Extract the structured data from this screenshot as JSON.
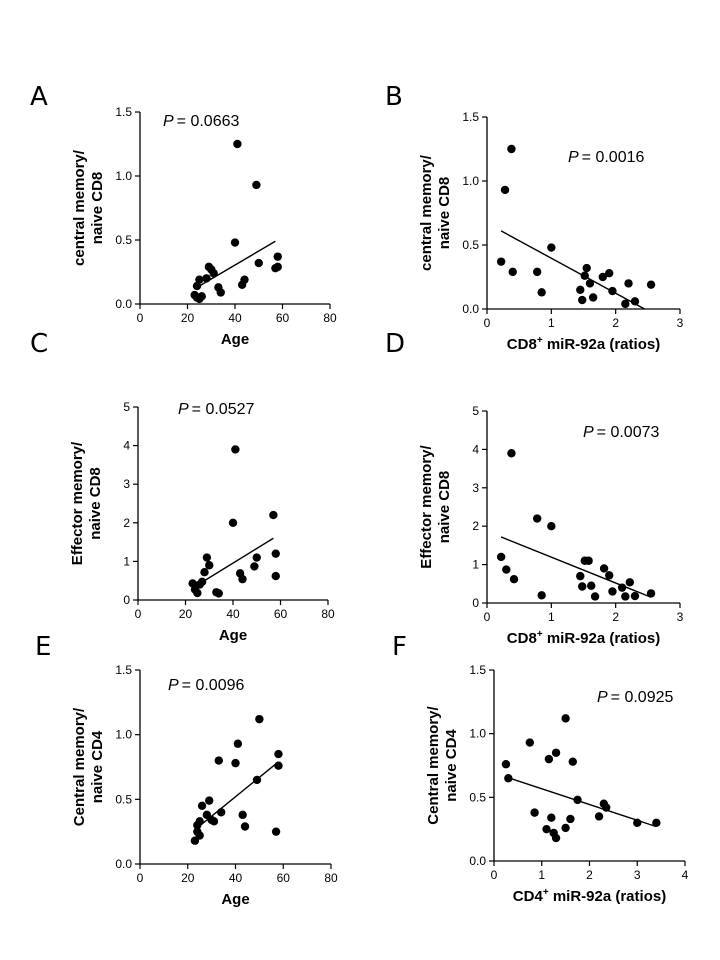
{
  "chart_data": [
    {
      "panel": "A",
      "type": "scatter",
      "p_value": "= 0.0663",
      "p_symbol": "P",
      "xlabel": "Age",
      "xlabel_sup": "",
      "xlabel_rest": "",
      "ylabel": [
        "central memory/",
        "naive CD8"
      ],
      "xlim": [
        0,
        80
      ],
      "ylim": [
        0,
        1.5
      ],
      "xticks": [
        "0",
        "20",
        "40",
        "60",
        "80"
      ],
      "yticks": [
        "0.0",
        "0.5",
        "1.0",
        "1.5"
      ],
      "points": [
        [
          23,
          0.07
        ],
        [
          24,
          0.05
        ],
        [
          24,
          0.14
        ],
        [
          25,
          0.04
        ],
        [
          25,
          0.19
        ],
        [
          26,
          0.06
        ],
        [
          28,
          0.2
        ],
        [
          29,
          0.29
        ],
        [
          30,
          0.27
        ],
        [
          31,
          0.24
        ],
        [
          33,
          0.13
        ],
        [
          34,
          0.09
        ],
        [
          40,
          0.48
        ],
        [
          41,
          1.25
        ],
        [
          43,
          0.15
        ],
        [
          44,
          0.19
        ],
        [
          49,
          0.93
        ],
        [
          50,
          0.32
        ],
        [
          57,
          0.28
        ],
        [
          58,
          0.37
        ],
        [
          58,
          0.29
        ]
      ],
      "fit": [
        [
          24,
          0.13
        ],
        [
          57,
          0.49
        ]
      ]
    },
    {
      "panel": "B",
      "type": "scatter",
      "p_value": "= 0.0016",
      "p_symbol": "P",
      "xlabel": "CD8",
      "xlabel_sup": "+",
      "xlabel_rest": " miR-92a (ratios)",
      "ylabel": [
        "central memory/",
        "naive CD8"
      ],
      "xlim": [
        0,
        3
      ],
      "ylim": [
        0,
        1.5
      ],
      "xticks": [
        "0",
        "1",
        "2",
        "3"
      ],
      "yticks": [
        "0.0",
        "0.5",
        "1.0",
        "1.5"
      ],
      "points": [
        [
          0.22,
          0.37
        ],
        [
          0.28,
          0.93
        ],
        [
          0.38,
          1.25
        ],
        [
          0.4,
          0.29
        ],
        [
          0.78,
          0.29
        ],
        [
          0.85,
          0.13
        ],
        [
          1.0,
          0.48
        ],
        [
          1.45,
          0.15
        ],
        [
          1.48,
          0.07
        ],
        [
          1.52,
          0.26
        ],
        [
          1.55,
          0.32
        ],
        [
          1.6,
          0.2
        ],
        [
          1.65,
          0.09
        ],
        [
          1.8,
          0.25
        ],
        [
          1.9,
          0.28
        ],
        [
          1.95,
          0.14
        ],
        [
          2.15,
          0.04
        ],
        [
          2.2,
          0.2
        ],
        [
          2.3,
          0.06
        ],
        [
          2.55,
          0.19
        ]
      ],
      "fit": [
        [
          0.22,
          0.61
        ],
        [
          2.45,
          0.0
        ]
      ]
    },
    {
      "panel": "C",
      "type": "scatter",
      "p_value": "= 0.0527",
      "p_symbol": "P",
      "xlabel": "Age",
      "xlabel_sup": "",
      "xlabel_rest": "",
      "ylabel": [
        "Effector memory/",
        "naive CD8"
      ],
      "xlim": [
        0,
        80
      ],
      "ylim": [
        0,
        5
      ],
      "xticks": [
        "0",
        "20",
        "40",
        "60",
        "80"
      ],
      "yticks": [
        "0",
        "1",
        "2",
        "3",
        "4",
        "5"
      ],
      "points": [
        [
          23,
          0.43
        ],
        [
          24,
          0.27
        ],
        [
          25,
          0.18
        ],
        [
          26,
          0.4
        ],
        [
          27,
          0.47
        ],
        [
          28,
          0.72
        ],
        [
          29,
          1.1
        ],
        [
          30,
          0.9
        ],
        [
          33,
          0.2
        ],
        [
          34,
          0.17
        ],
        [
          40,
          2.0
        ],
        [
          41,
          3.9
        ],
        [
          43,
          0.69
        ],
        [
          44,
          0.54
        ],
        [
          49,
          0.87
        ],
        [
          50,
          1.1
        ],
        [
          57,
          2.2
        ],
        [
          58,
          1.2
        ],
        [
          58,
          0.62
        ]
      ],
      "fit": [
        [
          24,
          0.35
        ],
        [
          57,
          1.6
        ]
      ]
    },
    {
      "panel": "D",
      "type": "scatter",
      "p_value": "= 0.0073",
      "p_symbol": "P",
      "xlabel": "CD8",
      "xlabel_sup": "+",
      "xlabel_rest": " miR-92a (ratios)",
      "ylabel": [
        "Effector memory/",
        "naive CD8"
      ],
      "xlim": [
        0,
        3
      ],
      "ylim": [
        0,
        5
      ],
      "xticks": [
        "0",
        "1",
        "2",
        "3"
      ],
      "yticks": [
        "0",
        "1",
        "2",
        "3",
        "4",
        "5"
      ],
      "points": [
        [
          0.22,
          1.2
        ],
        [
          0.3,
          0.87
        ],
        [
          0.38,
          3.9
        ],
        [
          0.42,
          0.62
        ],
        [
          0.78,
          2.2
        ],
        [
          0.85,
          0.2
        ],
        [
          1.0,
          2.0
        ],
        [
          1.45,
          0.7
        ],
        [
          1.48,
          0.43
        ],
        [
          1.52,
          1.1
        ],
        [
          1.58,
          1.1
        ],
        [
          1.62,
          0.45
        ],
        [
          1.68,
          0.17
        ],
        [
          1.82,
          0.9
        ],
        [
          1.9,
          0.72
        ],
        [
          1.95,
          0.3
        ],
        [
          2.1,
          0.4
        ],
        [
          2.15,
          0.17
        ],
        [
          2.22,
          0.54
        ],
        [
          2.3,
          0.18
        ],
        [
          2.55,
          0.25
        ]
      ],
      "fit": [
        [
          0.22,
          1.72
        ],
        [
          2.55,
          0.15
        ]
      ]
    },
    {
      "panel": "E",
      "type": "scatter",
      "p_value": "= 0.0096",
      "p_symbol": "P",
      "xlabel": "Age",
      "xlabel_sup": "",
      "xlabel_rest": "",
      "ylabel": [
        "Central memory/",
        "naive CD4"
      ],
      "xlim": [
        0,
        80
      ],
      "ylim": [
        0,
        1.5
      ],
      "xticks": [
        "0",
        "20",
        "40",
        "60",
        "80"
      ],
      "yticks": [
        "0.0",
        "0.5",
        "1.0",
        "1.5"
      ],
      "points": [
        [
          23,
          0.18
        ],
        [
          24,
          0.25
        ],
        [
          24,
          0.3
        ],
        [
          25,
          0.33
        ],
        [
          25,
          0.22
        ],
        [
          26,
          0.45
        ],
        [
          28,
          0.38
        ],
        [
          29,
          0.49
        ],
        [
          30,
          0.34
        ],
        [
          31,
          0.33
        ],
        [
          33,
          0.8
        ],
        [
          34,
          0.4
        ],
        [
          40,
          0.78
        ],
        [
          41,
          0.93
        ],
        [
          43,
          0.38
        ],
        [
          44,
          0.29
        ],
        [
          49,
          0.65
        ],
        [
          50,
          1.12
        ],
        [
          57,
          0.25
        ],
        [
          58,
          0.85
        ],
        [
          58,
          0.76
        ]
      ],
      "fit": [
        [
          24,
          0.28
        ],
        [
          58,
          0.79
        ]
      ]
    },
    {
      "panel": "F",
      "type": "scatter",
      "p_value": "= 0.0925",
      "p_symbol": "P",
      "xlabel": "CD4",
      "xlabel_sup": "+",
      "xlabel_rest": " miR-92a (ratios)",
      "ylabel": [
        "Central memory/",
        "naive CD4"
      ],
      "xlim": [
        0,
        4
      ],
      "ylim": [
        0,
        1.5
      ],
      "xticks": [
        "0",
        "1",
        "2",
        "3",
        "4"
      ],
      "yticks": [
        "0.0",
        "0.5",
        "1.0",
        "1.5"
      ],
      "points": [
        [
          0.25,
          0.76
        ],
        [
          0.3,
          0.65
        ],
        [
          0.75,
          0.93
        ],
        [
          0.85,
          0.38
        ],
        [
          1.1,
          0.25
        ],
        [
          1.15,
          0.8
        ],
        [
          1.2,
          0.34
        ],
        [
          1.25,
          0.22
        ],
        [
          1.3,
          0.18
        ],
        [
          1.3,
          0.85
        ],
        [
          1.5,
          1.12
        ],
        [
          1.5,
          0.26
        ],
        [
          1.6,
          0.33
        ],
        [
          1.65,
          0.78
        ],
        [
          1.75,
          0.48
        ],
        [
          2.2,
          0.35
        ],
        [
          2.3,
          0.45
        ],
        [
          2.35,
          0.42
        ],
        [
          3.0,
          0.3
        ],
        [
          3.4,
          0.3
        ]
      ],
      "fit": [
        [
          0.25,
          0.66
        ],
        [
          3.4,
          0.27
        ]
      ]
    }
  ]
}
